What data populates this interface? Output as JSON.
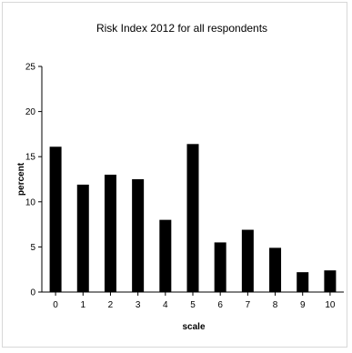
{
  "chart_data": {
    "type": "bar",
    "title": "Risk Index 2012 for all respondents",
    "xlabel": "scale",
    "ylabel": "percent",
    "categories": [
      "0",
      "1",
      "2",
      "3",
      "4",
      "5",
      "6",
      "7",
      "8",
      "9",
      "10"
    ],
    "values": [
      16.1,
      11.9,
      13.0,
      12.5,
      8.0,
      16.4,
      5.5,
      6.9,
      4.9,
      2.2,
      2.4
    ],
    "ylim": [
      0,
      25
    ],
    "yticks": [
      "0",
      "5",
      "10",
      "15",
      "20",
      "25"
    ],
    "grid": false,
    "legend": "none",
    "bar_color": "#000000"
  }
}
